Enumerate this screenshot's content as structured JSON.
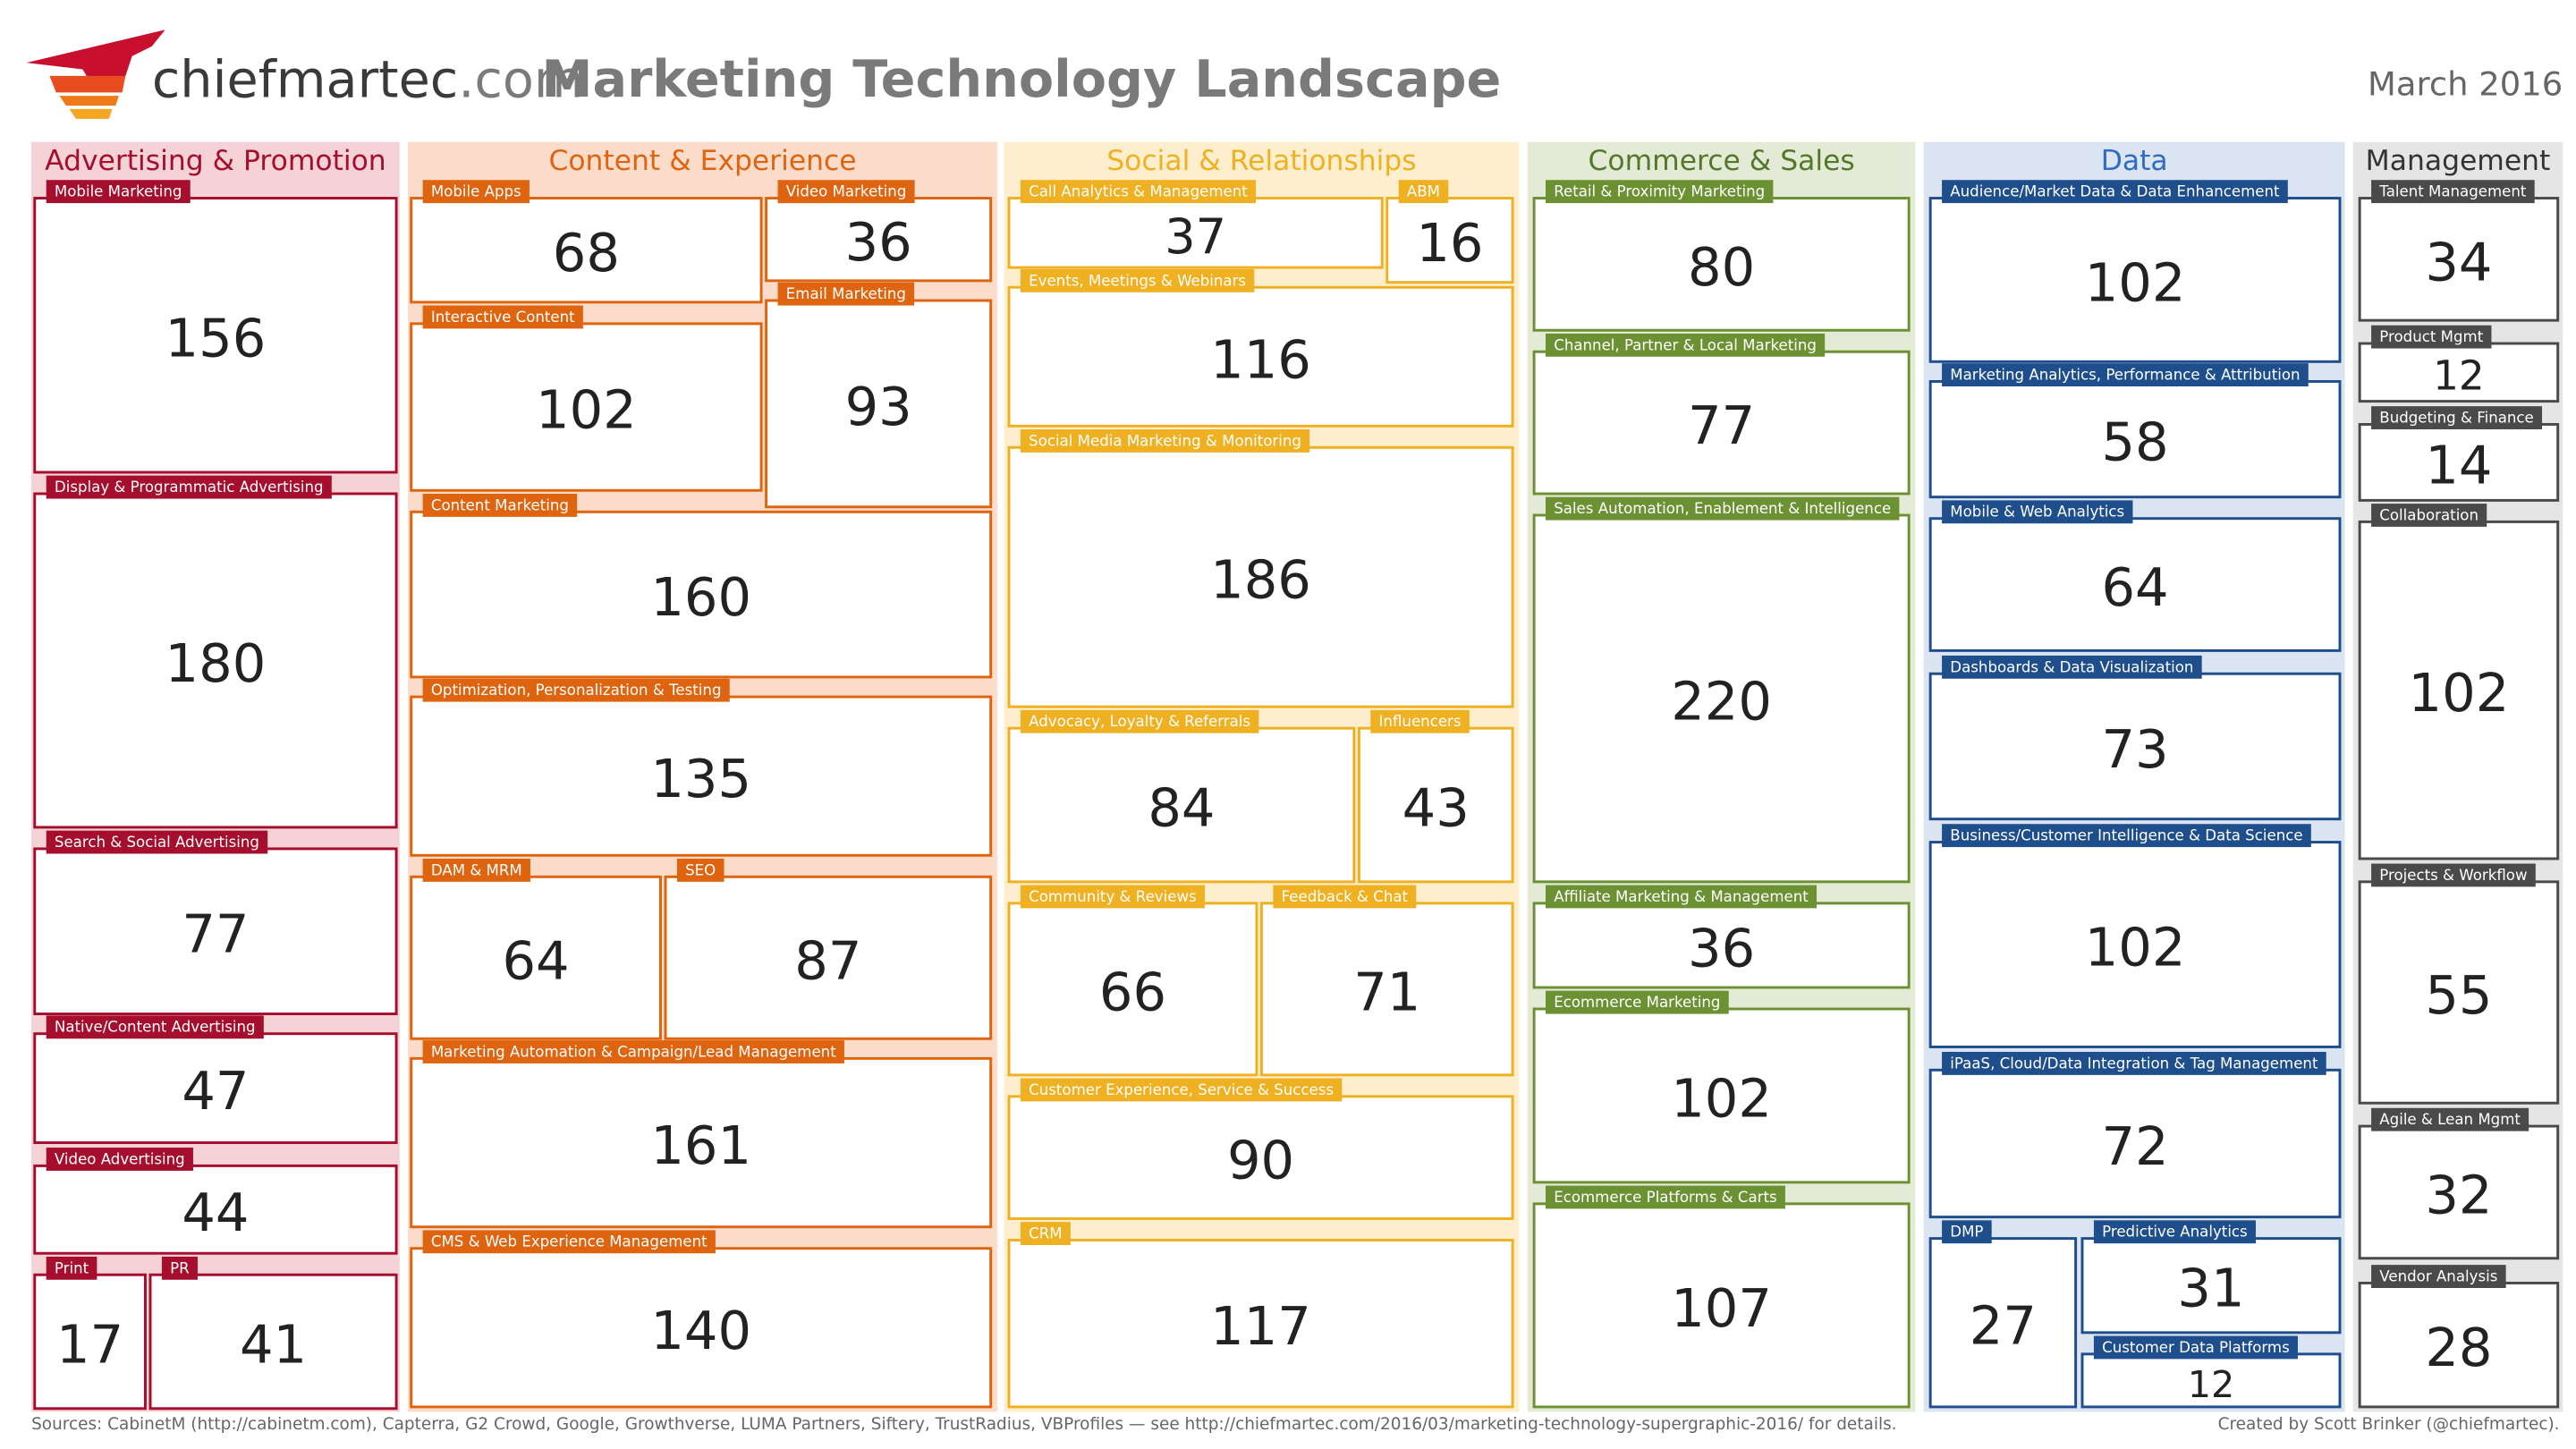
{
  "header": {
    "logo_name": "chiefmartec",
    "logo_domain": ".com",
    "title": "Marketing Technology Landscape",
    "date": "March 2016"
  },
  "columns": [
    {
      "title": "Advertising & Promotion",
      "boxes": [
        {
          "label": "Mobile Marketing",
          "count": "156"
        },
        {
          "label": "Display & Programmatic Advertising",
          "count": "180"
        },
        {
          "label": "Search & Social Advertising",
          "count": "77"
        },
        {
          "label": "Native/Content Advertising",
          "count": "47"
        },
        {
          "label": "Video Advertising",
          "count": "44"
        },
        {
          "label": "Print",
          "count": "17"
        },
        {
          "label": "PR",
          "count": "41"
        }
      ]
    },
    {
      "title": "Content & Experience",
      "boxes": [
        {
          "label": "Mobile Apps",
          "count": "68"
        },
        {
          "label": "Video Marketing",
          "count": "36"
        },
        {
          "label": "Interactive Content",
          "count": "102"
        },
        {
          "label": "Email Marketing",
          "count": "93"
        },
        {
          "label": "Content Marketing",
          "count": "160"
        },
        {
          "label": "Optimization, Personalization & Testing",
          "count": "135"
        },
        {
          "label": "DAM & MRM",
          "count": "64"
        },
        {
          "label": "SEO",
          "count": "87"
        },
        {
          "label": "Marketing Automation & Campaign/Lead Management",
          "count": "161"
        },
        {
          "label": "CMS & Web Experience Management",
          "count": "140"
        }
      ]
    },
    {
      "title": "Social & Relationships",
      "boxes": [
        {
          "label": "Call Analytics & Management",
          "count": "37"
        },
        {
          "label": "ABM",
          "count": "16"
        },
        {
          "label": "Events, Meetings & Webinars",
          "count": "116"
        },
        {
          "label": "Social Media Marketing & Monitoring",
          "count": "186"
        },
        {
          "label": "Advocacy, Loyalty & Referrals",
          "count": "84"
        },
        {
          "label": "Influencers",
          "count": "43"
        },
        {
          "label": "Community & Reviews",
          "count": "66"
        },
        {
          "label": "Feedback & Chat",
          "count": "71"
        },
        {
          "label": "Customer Experience, Service & Success",
          "count": "90"
        },
        {
          "label": "CRM",
          "count": "117"
        }
      ]
    },
    {
      "title": "Commerce & Sales",
      "boxes": [
        {
          "label": "Retail & Proximity Marketing",
          "count": "80"
        },
        {
          "label": "Channel, Partner & Local Marketing",
          "count": "77"
        },
        {
          "label": "Sales Automation, Enablement & Intelligence",
          "count": "220"
        },
        {
          "label": "Affiliate Marketing & Management",
          "count": "36"
        },
        {
          "label": "Ecommerce Marketing",
          "count": "102"
        },
        {
          "label": "Ecommerce Platforms & Carts",
          "count": "107"
        }
      ]
    },
    {
      "title": "Data",
      "boxes": [
        {
          "label": "Audience/Market Data & Data Enhancement",
          "count": "102"
        },
        {
          "label": "Marketing Analytics, Performance & Attribution",
          "count": "58"
        },
        {
          "label": "Mobile & Web Analytics",
          "count": "64"
        },
        {
          "label": "Dashboards & Data Visualization",
          "count": "73"
        },
        {
          "label": "Business/Customer Intelligence & Data Science",
          "count": "102"
        },
        {
          "label": "iPaaS, Cloud/Data Integration & Tag Management",
          "count": "72"
        },
        {
          "label": "DMP",
          "count": "27"
        },
        {
          "label": "Predictive Analytics",
          "count": "31"
        },
        {
          "label": "Customer Data Platforms",
          "count": "12"
        }
      ]
    },
    {
      "title": "Management",
      "boxes": [
        {
          "label": "Talent Management",
          "count": "34"
        },
        {
          "label": "Product Mgmt",
          "count": "12"
        },
        {
          "label": "Budgeting & Finance",
          "count": "14"
        },
        {
          "label": "Collaboration",
          "count": "102"
        },
        {
          "label": "Projects & Workflow",
          "count": "55"
        },
        {
          "label": "Agile & Lean Mgmt",
          "count": "32"
        },
        {
          "label": "Vendor Analysis",
          "count": "28"
        }
      ]
    }
  ],
  "footer": {
    "sources": "Sources: CabinetM (http://cabinetm.com), Capterra, G2 Crowd, Google, Growthverse, LUMA Partners, Siftery, TrustRadius, VBProfiles — see http://chiefmartec.com/2016/03/marketing-technology-supergraphic-2016/ for details.",
    "credit": "Created by Scott Brinker (@chiefmartec)."
  }
}
